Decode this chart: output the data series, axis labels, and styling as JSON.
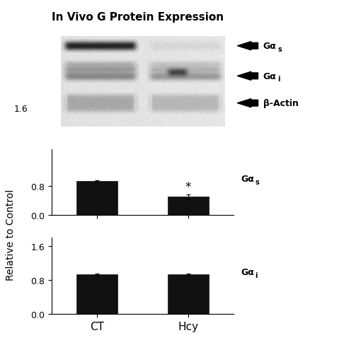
{
  "title": "In Vivo G Protein Expression",
  "bar_colors": [
    "#111111",
    "#111111"
  ],
  "categories": [
    "CT",
    "Hcy"
  ],
  "gs_ct_value": 0.92,
  "gs_hcy_value": 0.5,
  "gs_ct_err": 0.03,
  "gs_hcy_err": 0.07,
  "gi_ct_value": 0.93,
  "gi_hcy_value": 0.93,
  "gi_ct_err": 0.03,
  "gi_hcy_err": 0.03,
  "ylim": [
    0,
    1.8
  ],
  "yticks_gs": [
    0,
    0.8
  ],
  "yticks_gi": [
    0,
    0.8,
    1.6
  ],
  "ylabel": "Relative to Control",
  "star_label": "*",
  "background_color": "#ffffff",
  "bar_width": 0.45,
  "edge_color": "#111111",
  "blot_bg": 0.88,
  "blot_noise_seed": 42,
  "blot_noise_std": 0.015
}
